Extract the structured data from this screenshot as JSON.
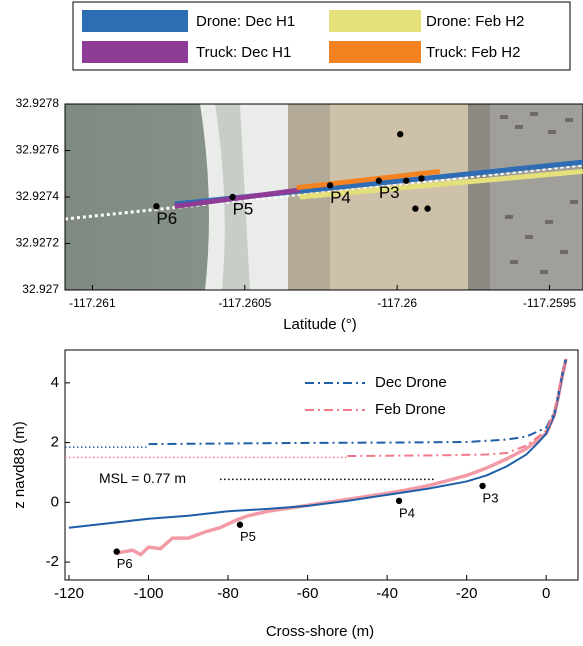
{
  "chart_data": [
    {
      "type": "line",
      "xlabel": "Latitude (°)",
      "xlim": [
        -117.26109,
        -117.25939
      ],
      "ylim": [
        32.927,
        32.9278
      ],
      "xticks": [
        -117.261,
        -117.2605,
        -117.26,
        -117.2595
      ],
      "yticks": [
        32.927,
        32.9272,
        32.9274,
        32.9276,
        32.9278
      ],
      "legend_position": "top-outside",
      "series": [
        {
          "name": "Drone: Dec H1",
          "color": "#2e6db4",
          "x": [
            -117.26073,
            -117.25939
          ],
          "y": [
            32.92737,
            32.92755
          ]
        },
        {
          "name": "Drone: Feb H2",
          "color": "#e4e07a",
          "x": [
            -117.26032,
            -117.25939
          ],
          "y": [
            32.9274,
            32.92751
          ]
        },
        {
          "name": "Truck: Dec H1",
          "color": "#8e3c96",
          "x": [
            -117.26073,
            -117.26032
          ],
          "y": [
            32.92736,
            32.92743
          ]
        },
        {
          "name": "Truck: Feb H2",
          "color": "#f58220",
          "x": [
            -117.26033,
            -117.25986
          ],
          "y": [
            32.92744,
            32.92751
          ]
        }
      ],
      "points": {
        "x": [
          -117.26079,
          -117.26054,
          -117.26022,
          -117.26006,
          -117.25999,
          -117.25997,
          -117.25992,
          -117.25994,
          -117.2599
        ],
        "y": [
          32.92736,
          32.9274,
          32.92745,
          32.92747,
          32.92767,
          32.92747,
          32.92748,
          32.92735,
          32.92735
        ],
        "labels": [
          "P6",
          "P5",
          "P4",
          "P3",
          null,
          null,
          null,
          null,
          null
        ]
      }
    },
    {
      "type": "line",
      "xlabel": "Cross-shore (m)",
      "ylabel": "z navd88 (m)",
      "xlim": [
        -121,
        8
      ],
      "ylim": [
        -2.6,
        5.1
      ],
      "xticks": [
        -120,
        -100,
        -80,
        -60,
        -40,
        -20,
        0
      ],
      "yticks": [
        -2,
        0,
        2,
        4
      ],
      "legend_position": "upper center",
      "series": [
        {
          "color": "#f29aa6",
          "width": 3.5,
          "dash": "solid",
          "x": [
            -108,
            -104,
            -102,
            -100,
            -97,
            -94,
            -90,
            -86,
            -82,
            -78,
            -75,
            -70,
            -65,
            -60,
            -55,
            -50,
            -45,
            -40,
            -35,
            -30,
            -25,
            -20,
            -15,
            -10,
            -5,
            -2,
            0,
            2,
            3,
            4,
            5
          ],
          "y": [
            -1.7,
            -1.6,
            -1.75,
            -1.5,
            -1.55,
            -1.2,
            -1.2,
            -1.0,
            -0.85,
            -0.6,
            -0.45,
            -0.3,
            -0.2,
            -0.1,
            0.0,
            0.1,
            0.2,
            0.3,
            0.42,
            0.55,
            0.72,
            0.9,
            1.15,
            1.45,
            1.8,
            2.1,
            2.3,
            2.9,
            3.5,
            4.2,
            4.8
          ]
        },
        {
          "color": "#1f5fa8",
          "width": 2,
          "dash": "solid",
          "x": [
            -120,
            -110,
            -100,
            -90,
            -80,
            -70,
            -60,
            -50,
            -40,
            -30,
            -20,
            -15,
            -10,
            -5,
            -2,
            0,
            2,
            3,
            4,
            5
          ],
          "y": [
            -0.85,
            -0.7,
            -0.55,
            -0.45,
            -0.3,
            -0.22,
            -0.12,
            0.05,
            0.25,
            0.45,
            0.7,
            0.9,
            1.2,
            1.6,
            2.0,
            2.3,
            2.9,
            3.5,
            4.2,
            4.8
          ]
        },
        {
          "name": "Dec Drone",
          "color": "#1f5fa8",
          "width": 2,
          "dash": "dashdot",
          "x": [
            -100,
            -80,
            -60,
            -40,
            -20,
            -10,
            -5,
            0,
            2,
            3,
            4,
            5
          ],
          "y": [
            1.95,
            1.97,
            1.99,
            2.0,
            2.02,
            2.1,
            2.2,
            2.5,
            3.0,
            3.6,
            4.3,
            4.9
          ]
        },
        {
          "name": "Feb Drone",
          "color": "#f07a88",
          "width": 2,
          "dash": "dashdot",
          "x": [
            -50,
            -30,
            -15,
            -10,
            -5,
            0,
            2,
            3,
            4,
            5
          ],
          "y": [
            1.55,
            1.57,
            1.6,
            1.65,
            1.9,
            2.4,
            3.0,
            3.6,
            4.3,
            4.8
          ]
        }
      ],
      "hlines": [
        {
          "y": 1.85,
          "x": [
            -121,
            -100
          ],
          "color": "#1f5fa8"
        },
        {
          "y": 1.5,
          "x": [
            -121,
            -50
          ],
          "color": "#f07a88"
        },
        {
          "y": 0.77,
          "x": [
            -82,
            -28
          ],
          "color": "#000000",
          "label": "MSL = 0.77 m"
        }
      ],
      "points": {
        "x": [
          -16,
          -37,
          -77,
          -108
        ],
        "y": [
          0.55,
          0.05,
          -0.75,
          -1.65
        ],
        "labels": [
          "P3",
          "P4",
          "P5",
          "P6"
        ]
      }
    }
  ]
}
